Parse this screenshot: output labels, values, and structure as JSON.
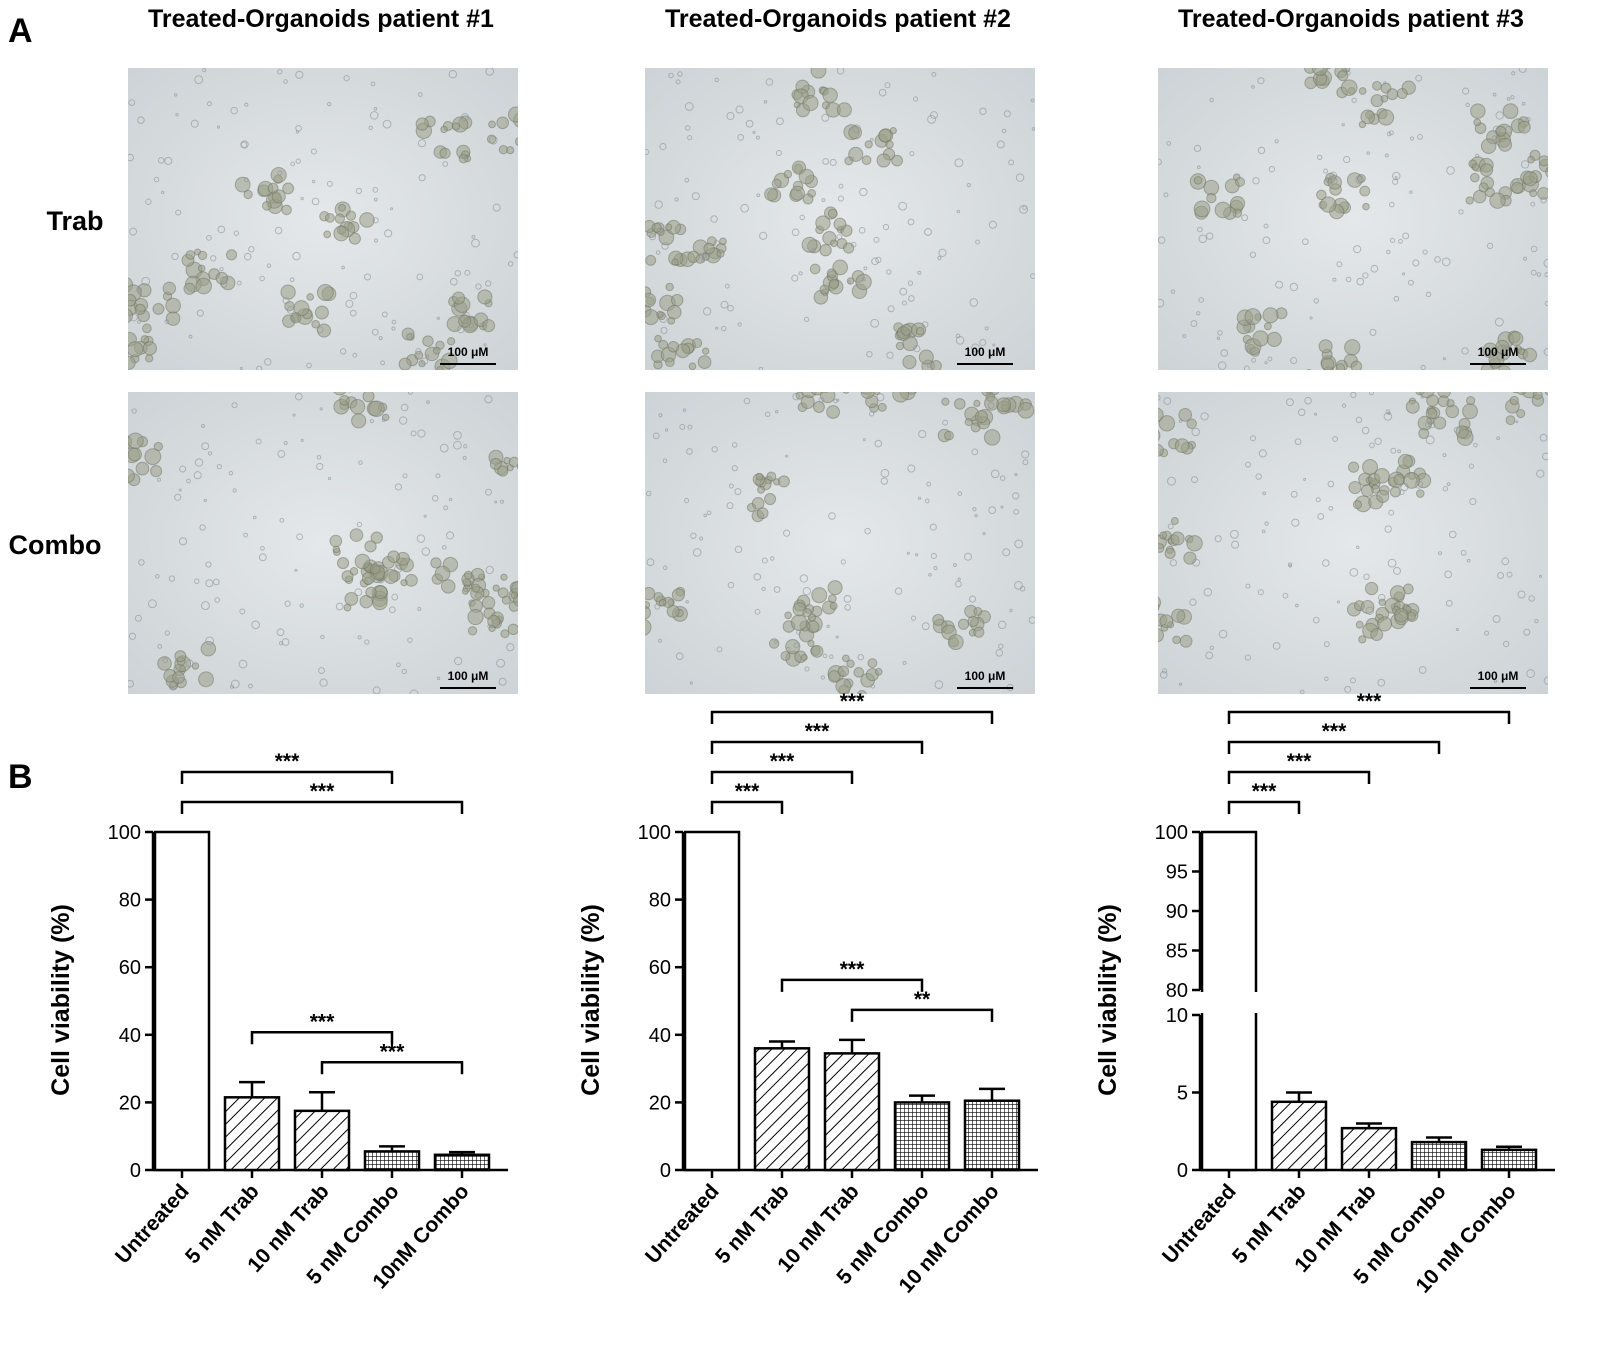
{
  "panel_a": {
    "label": "A",
    "columns": [
      "Treated-Organoids patient #1",
      "Treated-Organoids patient #2",
      "Treated-Organoids patient #3"
    ],
    "rows": [
      "Trab",
      "Combo"
    ],
    "scale_bar": "100 μM"
  },
  "panel_b": {
    "label": "B"
  },
  "chart_data": [
    {
      "type": "bar",
      "y_label": "Cell viability (%)",
      "categories": [
        "Untreated",
        "5 nM Trab",
        "10 nM Trab",
        "5 nM Combo",
        "10nM Combo"
      ],
      "values": [
        100,
        21.5,
        17.5,
        5.5,
        4.5
      ],
      "errors": [
        0,
        4.5,
        5.5,
        1.5,
        0.8
      ],
      "patterns": [
        "none",
        "hatch",
        "hatch",
        "grid",
        "grid"
      ],
      "color": "#000000",
      "ylim": [
        0,
        100
      ],
      "yticks": [
        0,
        20,
        40,
        60,
        80,
        100
      ],
      "annotations": [
        {
          "bars": [
            2,
            4
          ],
          "label": "***"
        },
        {
          "bars": [
            1,
            3
          ],
          "label": "***"
        },
        {
          "bars": [
            0,
            4
          ],
          "label": "***"
        },
        {
          "bars": [
            0,
            3
          ],
          "label": "***"
        }
      ]
    },
    {
      "type": "bar",
      "y_label": "Cell viability (%)",
      "categories": [
        "Untreated",
        "5 nM Trab",
        "10 nM Trab",
        "5 nM Combo",
        "10 nM Combo"
      ],
      "values": [
        100,
        36,
        34.5,
        20,
        20.5
      ],
      "errors": [
        0,
        2,
        4,
        2,
        3.5
      ],
      "patterns": [
        "none",
        "hatch",
        "hatch",
        "grid",
        "grid"
      ],
      "color": "#000000",
      "ylim": [
        0,
        100
      ],
      "yticks": [
        0,
        20,
        40,
        60,
        80,
        100
      ],
      "annotations": [
        {
          "bars": [
            2,
            4
          ],
          "label": "**"
        },
        {
          "bars": [
            1,
            3
          ],
          "label": "***"
        },
        {
          "bars": [
            0,
            1
          ],
          "label": "***"
        },
        {
          "bars": [
            0,
            2
          ],
          "label": "***"
        },
        {
          "bars": [
            0,
            3
          ],
          "label": "***"
        },
        {
          "bars": [
            0,
            4
          ],
          "label": "***"
        }
      ]
    },
    {
      "type": "broken_bar",
      "y_label": "Cell viability (%)",
      "categories": [
        "Untreated",
        "5 nM Trab",
        "10 nM Trab",
        "5 nM Combo",
        "10 nM Combo"
      ],
      "values": [
        100,
        4.4,
        2.7,
        1.8,
        1.3
      ],
      "errors": [
        0,
        0.6,
        0.3,
        0.3,
        0.2
      ],
      "patterns": [
        "none",
        "hatch",
        "hatch",
        "grid",
        "grid"
      ],
      "color": "#000000",
      "segments": [
        {
          "ylim": [
            0,
            10
          ],
          "yticks": [
            0,
            5,
            10
          ]
        },
        {
          "ylim": [
            80,
            100
          ],
          "yticks": [
            80,
            85,
            90,
            95,
            100
          ]
        }
      ],
      "annotations": [
        {
          "bars": [
            0,
            1
          ],
          "label": "***"
        },
        {
          "bars": [
            0,
            2
          ],
          "label": "***"
        },
        {
          "bars": [
            0,
            3
          ],
          "label": "***"
        },
        {
          "bars": [
            0,
            4
          ],
          "label": "***"
        }
      ]
    }
  ]
}
